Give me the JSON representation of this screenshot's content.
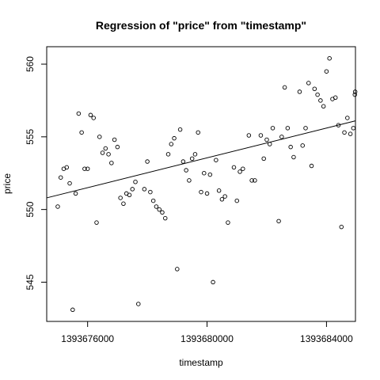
{
  "chart_data": {
    "type": "scatter",
    "title": "Regression of \"price\" from \"timestamp\"",
    "xlabel": "timestamp",
    "ylabel": "price",
    "xlim": [
      1393674630,
      1393684970
    ],
    "ylim": [
      542.3,
      561.2
    ],
    "x_ticks": [
      1393676000,
      1393680000,
      1393684000
    ],
    "y_ticks": [
      545,
      550,
      555,
      560
    ],
    "x_tick_labels": [
      "1393676000",
      "1393680000",
      "1393684000"
    ],
    "y_tick_labels": [
      "545",
      "550",
      "555",
      "560"
    ],
    "grid": false,
    "legend": "none",
    "regression_line": {
      "x": [
        1393674630,
        1393684970
      ],
      "y": [
        550.8,
        556.1
      ]
    },
    "points": [
      [
        1393675000,
        550.2
      ],
      [
        1393675100,
        552.2
      ],
      [
        1393675200,
        552.8
      ],
      [
        1393675300,
        552.9
      ],
      [
        1393675400,
        551.8
      ],
      [
        1393675500,
        543.1
      ],
      [
        1393675600,
        551.1
      ],
      [
        1393675700,
        556.6
      ],
      [
        1393675800,
        555.3
      ],
      [
        1393675900,
        552.8
      ],
      [
        1393676000,
        552.8
      ],
      [
        1393676100,
        556.5
      ],
      [
        1393676200,
        556.3
      ],
      [
        1393676300,
        549.1
      ],
      [
        1393676400,
        555.0
      ],
      [
        1393676500,
        553.9
      ],
      [
        1393676600,
        554.2
      ],
      [
        1393676700,
        553.8
      ],
      [
        1393676800,
        553.2
      ],
      [
        1393676900,
        554.8
      ],
      [
        1393677000,
        554.3
      ],
      [
        1393677100,
        550.8
      ],
      [
        1393677200,
        550.4
      ],
      [
        1393677300,
        551.1
      ],
      [
        1393677400,
        551.0
      ],
      [
        1393677500,
        551.4
      ],
      [
        1393677600,
        551.9
      ],
      [
        1393677700,
        543.5
      ],
      [
        1393677900,
        551.4
      ],
      [
        1393678000,
        553.3
      ],
      [
        1393678100,
        551.2
      ],
      [
        1393678200,
        550.6
      ],
      [
        1393678300,
        550.2
      ],
      [
        1393678400,
        550.0
      ],
      [
        1393678500,
        549.8
      ],
      [
        1393678600,
        549.4
      ],
      [
        1393678700,
        553.8
      ],
      [
        1393678800,
        554.5
      ],
      [
        1393678900,
        554.9
      ],
      [
        1393679000,
        545.9
      ],
      [
        1393679100,
        555.5
      ],
      [
        1393679200,
        553.3
      ],
      [
        1393679300,
        552.7
      ],
      [
        1393679400,
        552.0
      ],
      [
        1393679500,
        553.5
      ],
      [
        1393679600,
        553.8
      ],
      [
        1393679700,
        555.3
      ],
      [
        1393679800,
        551.2
      ],
      [
        1393679900,
        552.5
      ],
      [
        1393680000,
        551.1
      ],
      [
        1393680100,
        552.4
      ],
      [
        1393680200,
        545.0
      ],
      [
        1393680300,
        553.4
      ],
      [
        1393680400,
        551.3
      ],
      [
        1393680500,
        550.7
      ],
      [
        1393680600,
        550.9
      ],
      [
        1393680700,
        549.1
      ],
      [
        1393680900,
        552.9
      ],
      [
        1393681000,
        550.6
      ],
      [
        1393681100,
        552.6
      ],
      [
        1393681200,
        552.8
      ],
      [
        1393681400,
        555.1
      ],
      [
        1393681500,
        552.0
      ],
      [
        1393681600,
        552.0
      ],
      [
        1393681800,
        555.1
      ],
      [
        1393681900,
        553.5
      ],
      [
        1393682000,
        554.8
      ],
      [
        1393682100,
        554.5
      ],
      [
        1393682200,
        555.6
      ],
      [
        1393682400,
        549.2
      ],
      [
        1393682500,
        555.0
      ],
      [
        1393682600,
        558.4
      ],
      [
        1393682700,
        555.6
      ],
      [
        1393682800,
        554.3
      ],
      [
        1393682900,
        553.6
      ],
      [
        1393683100,
        558.1
      ],
      [
        1393683200,
        554.4
      ],
      [
        1393683300,
        555.6
      ],
      [
        1393683400,
        558.7
      ],
      [
        1393683500,
        553.0
      ],
      [
        1393683600,
        558.3
      ],
      [
        1393683700,
        557.9
      ],
      [
        1393683800,
        557.5
      ],
      [
        1393683900,
        557.1
      ],
      [
        1393684000,
        559.5
      ],
      [
        1393684100,
        560.4
      ],
      [
        1393684200,
        557.6
      ],
      [
        1393684300,
        557.7
      ],
      [
        1393684400,
        555.8
      ],
      [
        1393684500,
        548.8
      ],
      [
        1393684600,
        555.3
      ],
      [
        1393684700,
        556.3
      ],
      [
        1393684800,
        555.2
      ],
      [
        1393684900,
        555.6
      ],
      [
        1393684950,
        557.9
      ],
      [
        1393684960,
        558.1
      ]
    ]
  }
}
